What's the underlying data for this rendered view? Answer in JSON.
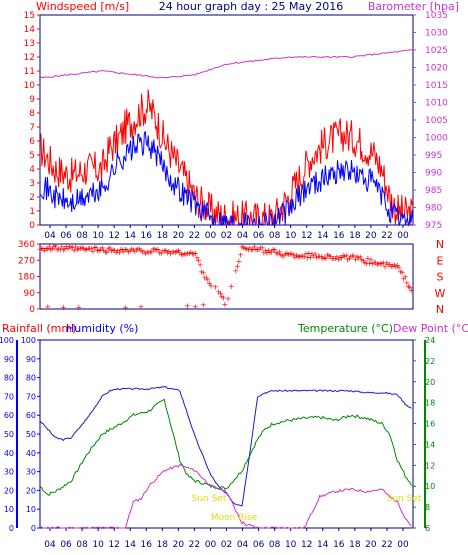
{
  "header": {
    "left_title": "Windspeed [m/s]",
    "center_title": "24 hour graph day : 25 May 2016",
    "right_title": "Barometer [hpa]"
  },
  "colors": {
    "wind_gust": "#ff0000",
    "wind_avg": "#0000ff",
    "barometer": "#cc33cc",
    "direction": "#ff0000",
    "rain": "#ff0000",
    "humidity": "#0000ff",
    "humidity_line": "#1a1acc",
    "temperature": "#008800",
    "dewpoint": "#cc33cc",
    "sun_moon": "#dddd00",
    "frame": "#000080"
  },
  "labels": {
    "rain": "Rainfall (mm)",
    "humidity": "Humidity (%)",
    "temperature": "Temperature (°C)",
    "dewpoint": "Dew Point (°C)",
    "sun_set_1": "Sun Set",
    "moon_rise": "Moon Rise",
    "sun_set_2": "Sun Set"
  },
  "chart_data": [
    {
      "type": "line",
      "panel": "wind_barometer",
      "x_ticks": [
        "04",
        "06",
        "08",
        "10",
        "12",
        "14",
        "16",
        "18",
        "20",
        "22",
        "00",
        "02",
        "04",
        "06",
        "08",
        "10",
        "12",
        "14",
        "16",
        "18",
        "20",
        "22",
        "00"
      ],
      "left_axis": {
        "label": "Windspeed [m/s]",
        "ylim": [
          0,
          15
        ],
        "ticks": [
          0,
          1,
          2,
          3,
          4,
          5,
          6,
          7,
          8,
          9,
          10,
          11,
          12,
          13,
          14,
          15
        ]
      },
      "right_axis": {
        "label": "Barometer [hpa]",
        "ylim": [
          975,
          1035
        ],
        "ticks": [
          975,
          980,
          985,
          990,
          995,
          1000,
          1005,
          1010,
          1015,
          1020,
          1025,
          1030,
          1035
        ]
      },
      "series": [
        {
          "key": "gust",
          "axis": "left",
          "hours": [
            0,
            2,
            4,
            6,
            8,
            9,
            10,
            11,
            12,
            13,
            14,
            15,
            16,
            17,
            18,
            19,
            20,
            22,
            24,
            26,
            28,
            30,
            32,
            34,
            35,
            36,
            37,
            38,
            39,
            40,
            41,
            42,
            43,
            44,
            45,
            46,
            47,
            48
          ],
          "values": [
            5.5,
            4,
            3.5,
            4,
            4,
            5.5,
            6,
            7,
            7.5,
            8.2,
            8.5,
            7.5,
            6,
            5,
            4,
            3,
            2,
            1,
            0.5,
            0.5,
            0.5,
            0.5,
            2,
            4,
            5,
            5.5,
            6,
            6.2,
            6.5,
            6.3,
            6,
            5.5,
            5,
            4,
            2,
            1,
            0.8,
            0.8
          ]
        },
        {
          "key": "avg",
          "axis": "left",
          "hours": [
            0,
            2,
            4,
            6,
            8,
            9,
            10,
            11,
            12,
            13,
            14,
            15,
            16,
            17,
            18,
            19,
            20,
            22,
            24,
            26,
            28,
            30,
            32,
            34,
            35,
            36,
            37,
            38,
            39,
            40,
            41,
            42,
            43,
            44,
            45,
            46,
            47,
            48
          ],
          "values": [
            3,
            2,
            1.5,
            2,
            2.5,
            3.5,
            4.5,
            5,
            5.5,
            5.8,
            5.8,
            5,
            4,
            3.2,
            2.5,
            2,
            1.5,
            0.5,
            0.2,
            0.2,
            0.2,
            0.3,
            1,
            2.5,
            3,
            3.2,
            3.5,
            3.8,
            4,
            3.8,
            3.5,
            3.2,
            3,
            2,
            1,
            0.5,
            0.4,
            0.4
          ]
        },
        {
          "key": "barometer",
          "axis": "right",
          "hours": [
            0,
            4,
            8,
            12,
            16,
            20,
            24,
            28,
            32,
            36,
            40,
            44,
            48
          ],
          "values": [
            1017,
            1018,
            1019,
            1018,
            1017,
            1018,
            1021,
            1022,
            1023,
            1023,
            1023,
            1024,
            1025
          ]
        }
      ]
    },
    {
      "type": "scatter",
      "panel": "wind_direction",
      "left_axis": {
        "ylim": [
          0,
          360
        ],
        "ticks": [
          0,
          90,
          180,
          270,
          360
        ]
      },
      "right_axis": {
        "ticks": [
          "N",
          "E",
          "S",
          "W",
          "N"
        ]
      },
      "hours": [
        0,
        4,
        8,
        12,
        16,
        18,
        20,
        21,
        22,
        23,
        24,
        26,
        28,
        30,
        32,
        34,
        36,
        38,
        40,
        42,
        44,
        46,
        48
      ],
      "values": [
        340,
        335,
        330,
        325,
        320,
        315,
        305,
        200,
        140,
        100,
        20,
        340,
        330,
        320,
        300,
        300,
        295,
        290,
        285,
        270,
        250,
        235,
        100
      ]
    },
    {
      "type": "line",
      "panel": "rain_humidity_temperature",
      "x_ticks": [
        "04",
        "06",
        "08",
        "10",
        "12",
        "14",
        "16",
        "18",
        "20",
        "22",
        "00",
        "02",
        "04",
        "06",
        "08",
        "10",
        "12",
        "14",
        "16",
        "18",
        "20",
        "22",
        "00"
      ],
      "left_axes": [
        {
          "label": "Rainfall (mm)",
          "ylim": [
            0,
            100
          ],
          "ticks": [
            0,
            10,
            20,
            30,
            40,
            50,
            60,
            70,
            80,
            90,
            100
          ]
        },
        {
          "label": "Humidity (%)",
          "ylim": [
            0,
            100
          ],
          "ticks": [
            0,
            10,
            20,
            30,
            40,
            50,
            60,
            70,
            80,
            90,
            100
          ]
        }
      ],
      "right_axis": {
        "label": "Temperature (°C)",
        "ylim": [
          6,
          24
        ],
        "ticks": [
          6,
          8,
          10,
          12,
          14,
          16,
          18,
          20,
          22,
          24
        ]
      },
      "series": [
        {
          "key": "humidity",
          "axis": "humidity",
          "hours": [
            0,
            2,
            3,
            4,
            6,
            8,
            9,
            10,
            12,
            14,
            16,
            18,
            20,
            22,
            23,
            24,
            25,
            26,
            27,
            28,
            29,
            30,
            31,
            32,
            34,
            36,
            38,
            40,
            42,
            44,
            46,
            47,
            48
          ],
          "values": [
            57,
            48,
            47,
            48,
            58,
            70,
            73,
            74,
            74,
            74,
            75,
            73,
            48,
            28,
            22,
            18,
            13,
            12,
            40,
            70,
            72,
            73,
            73,
            73,
            73,
            73,
            73,
            73,
            72,
            72,
            71,
            66,
            63
          ]
        },
        {
          "key": "temperature",
          "axis": "right",
          "hours": [
            0,
            1,
            2,
            4,
            6,
            8,
            10,
            12,
            14,
            16,
            18,
            19,
            20,
            21,
            22,
            24,
            26,
            28,
            29,
            30,
            32,
            34,
            36,
            38,
            40,
            42,
            44,
            45,
            46,
            47,
            48
          ],
          "values": [
            10,
            9.2,
            9.5,
            10.5,
            13,
            15,
            15.8,
            16.8,
            17.2,
            18.3,
            12.5,
            11,
            10.5,
            10.3,
            10,
            9.8,
            11.5,
            14.5,
            15.5,
            16,
            16.3,
            16.5,
            16.6,
            16.3,
            16.8,
            16.5,
            16,
            15,
            12.5,
            11,
            10
          ]
        },
        {
          "key": "dewpoint",
          "axis": "right",
          "hours": [
            0,
            2,
            4,
            6,
            8,
            9,
            10,
            11,
            12,
            13,
            14,
            16,
            18,
            20,
            22,
            24,
            26,
            28,
            30,
            32,
            34,
            36,
            38,
            40,
            42,
            44,
            45,
            46,
            47,
            48
          ],
          "values": [
            6,
            6,
            6,
            6,
            6,
            6,
            6,
            6,
            8.5,
            8.8,
            10,
            11.5,
            12,
            11.5,
            10,
            9.5,
            6.5,
            6,
            6,
            6,
            6,
            9,
            9.5,
            9.7,
            9.5,
            9.7,
            9,
            8.5,
            7,
            6
          ]
        }
      ]
    }
  ]
}
